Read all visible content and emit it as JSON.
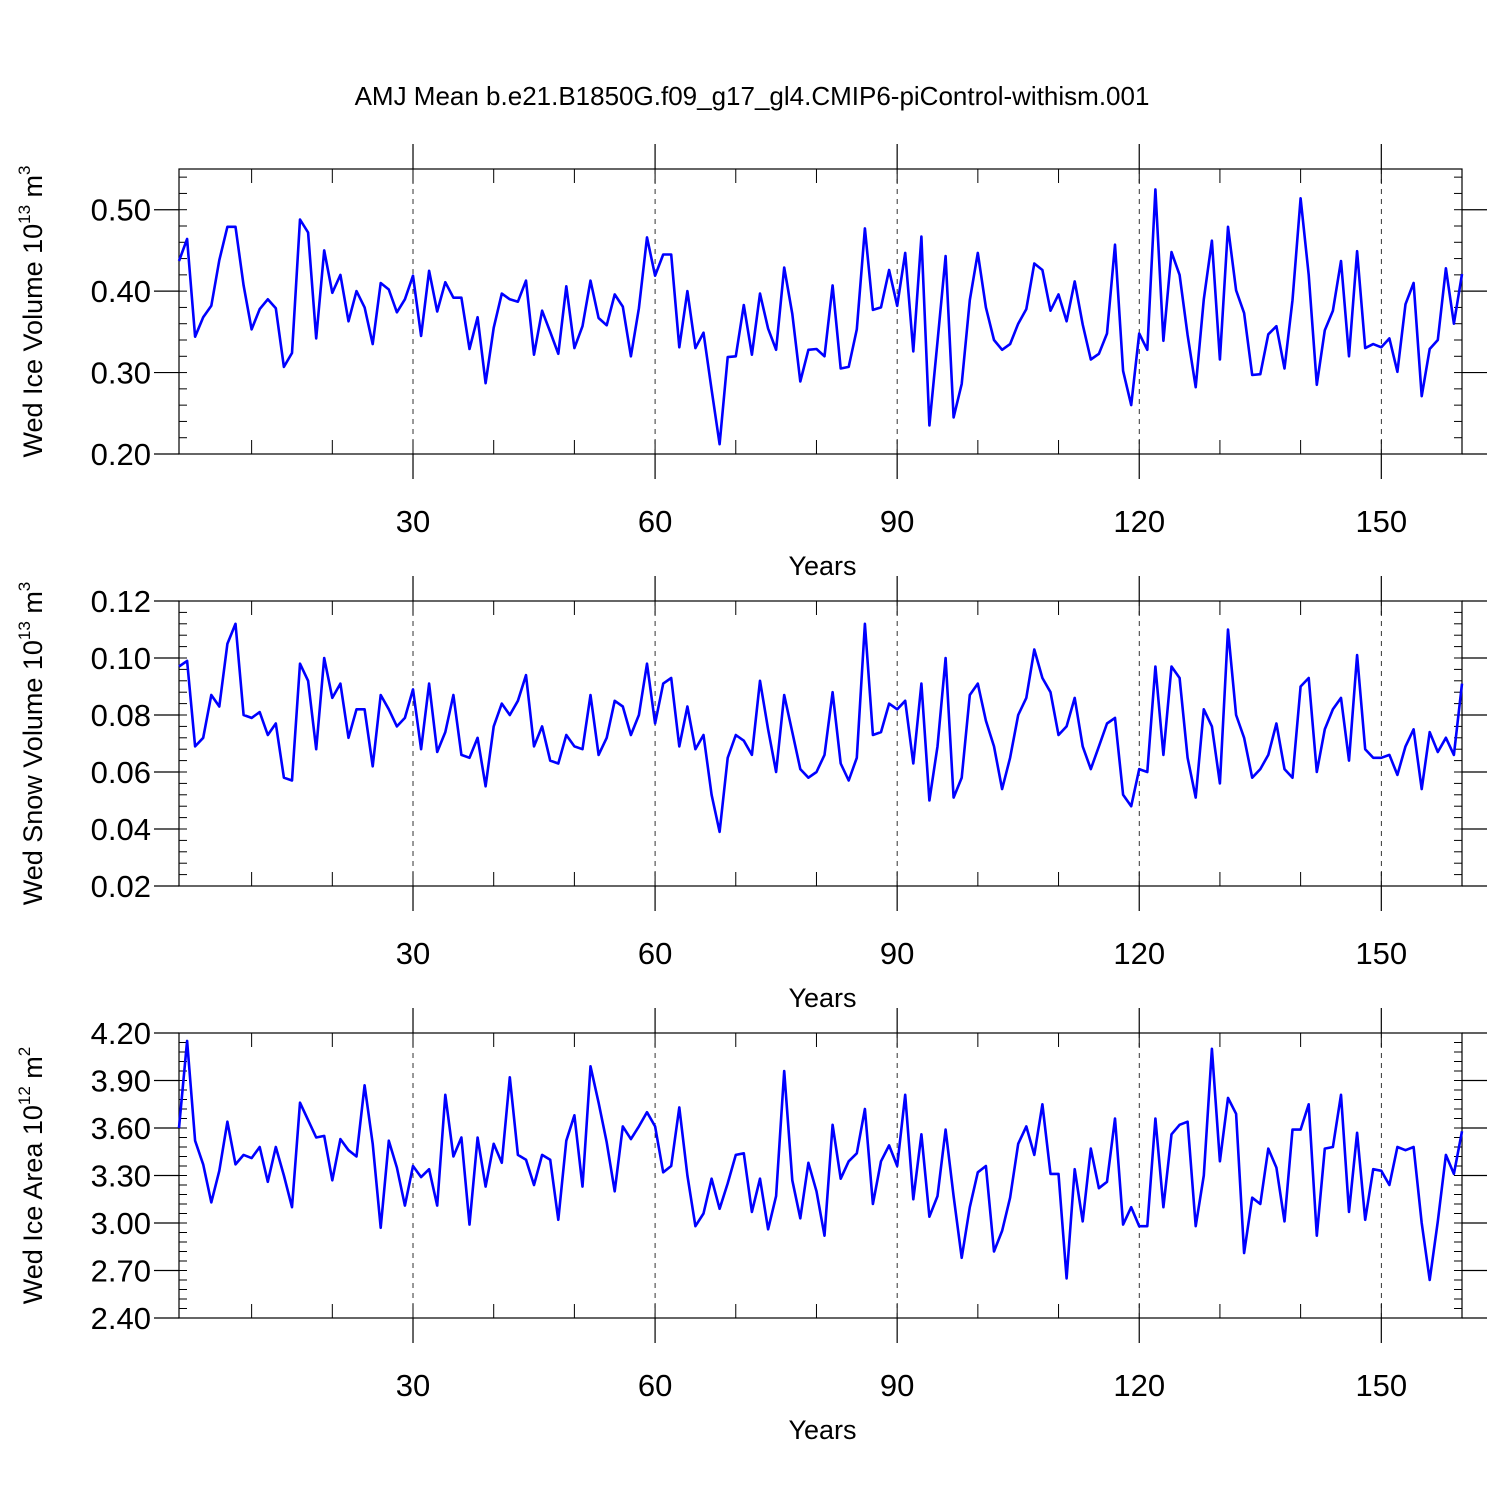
{
  "title": "AMJ Mean b.e21.B1850G.f09_g17_gl4.CMIP6-piControl-withism.001",
  "colors": {
    "line": "#0000ff",
    "axis": "#000000",
    "grid": "#000000"
  },
  "chart_data": [
    {
      "type": "line",
      "title": "",
      "xlabel": "Years",
      "ylabel_parts": [
        "Wed Ice Volume 10",
        "13",
        " m",
        "3"
      ],
      "xlim": [
        1,
        160
      ],
      "ylim": [
        0.2,
        0.55
      ],
      "xticks": [
        30,
        60,
        90,
        120,
        150
      ],
      "yticks": [
        0.2,
        0.3,
        0.4,
        0.5
      ],
      "ytick_labels": [
        "0.20",
        "0.30",
        "0.40",
        "0.50"
      ],
      "grid": "dashed vertical at major x ticks",
      "series": [
        {
          "values": [
            0.437,
            0.464,
            0.344,
            0.368,
            0.382,
            0.438,
            0.479,
            0.479,
            0.407,
            0.353,
            0.378,
            0.39,
            0.379,
            0.307,
            0.324,
            0.488,
            0.472,
            0.342,
            0.45,
            0.398,
            0.42,
            0.363,
            0.4,
            0.38,
            0.335,
            0.41,
            0.402,
            0.374,
            0.39,
            0.419,
            0.345,
            0.425,
            0.375,
            0.411,
            0.392,
            0.392,
            0.329,
            0.368,
            0.287,
            0.355,
            0.397,
            0.39,
            0.387,
            0.413,
            0.322,
            0.376,
            0.35,
            0.323,
            0.406,
            0.33,
            0.357,
            0.413,
            0.367,
            0.358,
            0.396,
            0.381,
            0.32,
            0.379,
            0.466,
            0.419,
            0.445,
            0.445,
            0.331,
            0.4,
            0.33,
            0.349,
            0.279,
            0.212,
            0.319,
            0.32,
            0.383,
            0.322,
            0.397,
            0.354,
            0.328,
            0.429,
            0.372,
            0.289,
            0.328,
            0.329,
            0.32,
            0.407,
            0.305,
            0.307,
            0.353,
            0.477,
            0.377,
            0.38,
            0.426,
            0.382,
            0.447,
            0.326,
            0.467,
            0.235,
            0.338,
            0.443,
            0.245,
            0.286,
            0.389,
            0.447,
            0.38,
            0.34,
            0.328,
            0.335,
            0.36,
            0.378,
            0.434,
            0.426,
            0.376,
            0.396,
            0.363,
            0.412,
            0.359,
            0.316,
            0.323,
            0.348,
            0.457,
            0.302,
            0.26,
            0.348,
            0.328,
            0.525,
            0.339,
            0.448,
            0.42,
            0.346,
            0.282,
            0.39,
            0.462,
            0.316,
            0.479,
            0.401,
            0.373,
            0.297,
            0.298,
            0.347,
            0.357,
            0.305,
            0.389,
            0.514,
            0.42,
            0.285,
            0.352,
            0.376,
            0.437,
            0.32,
            0.449,
            0.33,
            0.335,
            0.331,
            0.342,
            0.301,
            0.384,
            0.41,
            0.271,
            0.329,
            0.34,
            0.428,
            0.36,
            0.421
          ]
        }
      ]
    },
    {
      "type": "line",
      "title": "",
      "xlabel": "Years",
      "ylabel_parts": [
        "Wed Snow Volume 10",
        "13",
        " m",
        "3"
      ],
      "xlim": [
        1,
        160
      ],
      "ylim": [
        0.02,
        0.12
      ],
      "xticks": [
        30,
        60,
        90,
        120,
        150
      ],
      "yticks": [
        0.02,
        0.04,
        0.06,
        0.08,
        0.1,
        0.12
      ],
      "ytick_labels": [
        "0.02",
        "0.04",
        "0.06",
        "0.08",
        "0.10",
        "0.12"
      ],
      "grid": "dashed vertical at major x ticks",
      "series": [
        {
          "values": [
            0.097,
            0.099,
            0.069,
            0.072,
            0.087,
            0.083,
            0.105,
            0.112,
            0.08,
            0.079,
            0.081,
            0.073,
            0.077,
            0.058,
            0.057,
            0.098,
            0.092,
            0.068,
            0.1,
            0.086,
            0.091,
            0.072,
            0.082,
            0.082,
            0.062,
            0.087,
            0.082,
            0.076,
            0.079,
            0.089,
            0.068,
            0.091,
            0.067,
            0.074,
            0.087,
            0.066,
            0.065,
            0.072,
            0.055,
            0.076,
            0.084,
            0.08,
            0.085,
            0.094,
            0.069,
            0.076,
            0.064,
            0.063,
            0.073,
            0.069,
            0.068,
            0.087,
            0.066,
            0.072,
            0.085,
            0.083,
            0.073,
            0.08,
            0.098,
            0.077,
            0.091,
            0.093,
            0.069,
            0.083,
            0.068,
            0.073,
            0.052,
            0.039,
            0.065,
            0.073,
            0.071,
            0.066,
            0.092,
            0.075,
            0.06,
            0.087,
            0.074,
            0.061,
            0.058,
            0.06,
            0.066,
            0.088,
            0.063,
            0.057,
            0.065,
            0.112,
            0.073,
            0.074,
            0.084,
            0.082,
            0.085,
            0.063,
            0.091,
            0.05,
            0.069,
            0.1,
            0.051,
            0.058,
            0.087,
            0.091,
            0.078,
            0.069,
            0.054,
            0.065,
            0.08,
            0.086,
            0.103,
            0.093,
            0.088,
            0.073,
            0.076,
            0.086,
            0.069,
            0.061,
            0.069,
            0.077,
            0.079,
            0.052,
            0.048,
            0.061,
            0.06,
            0.097,
            0.066,
            0.097,
            0.093,
            0.065,
            0.051,
            0.082,
            0.076,
            0.056,
            0.11,
            0.08,
            0.072,
            0.058,
            0.061,
            0.066,
            0.077,
            0.061,
            0.058,
            0.09,
            0.093,
            0.06,
            0.075,
            0.082,
            0.086,
            0.064,
            0.101,
            0.068,
            0.065,
            0.065,
            0.066,
            0.059,
            0.069,
            0.075,
            0.054,
            0.074,
            0.067,
            0.072,
            0.066,
            0.091
          ]
        }
      ]
    },
    {
      "type": "line",
      "title": "",
      "xlabel": "Years",
      "ylabel_parts": [
        "Wed Ice Area 10",
        "12",
        " m",
        "2"
      ],
      "xlim": [
        1,
        160
      ],
      "ylim": [
        2.4,
        4.2
      ],
      "xticks": [
        30,
        60,
        90,
        120,
        150
      ],
      "yticks": [
        2.4,
        2.7,
        3.0,
        3.3,
        3.6,
        3.9,
        4.2
      ],
      "ytick_labels": [
        "2.40",
        "2.70",
        "3.00",
        "3.30",
        "3.60",
        "3.90",
        "4.20"
      ],
      "grid": "dashed vertical at major x ticks",
      "series": [
        {
          "values": [
            3.6,
            4.15,
            3.52,
            3.37,
            3.13,
            3.33,
            3.64,
            3.37,
            3.43,
            3.41,
            3.48,
            3.26,
            3.48,
            3.3,
            3.1,
            3.76,
            3.65,
            3.54,
            3.55,
            3.27,
            3.53,
            3.46,
            3.42,
            3.87,
            3.5,
            2.97,
            3.52,
            3.35,
            3.11,
            3.36,
            3.29,
            3.34,
            3.11,
            3.81,
            3.42,
            3.54,
            2.99,
            3.54,
            3.23,
            3.5,
            3.38,
            3.92,
            3.43,
            3.4,
            3.24,
            3.43,
            3.4,
            3.02,
            3.52,
            3.68,
            3.23,
            3.99,
            3.76,
            3.51,
            3.2,
            3.61,
            3.53,
            3.61,
            3.7,
            3.61,
            3.32,
            3.36,
            3.73,
            3.3,
            2.98,
            3.06,
            3.28,
            3.09,
            3.25,
            3.43,
            3.44,
            3.07,
            3.28,
            2.96,
            3.17,
            3.96,
            3.27,
            3.03,
            3.38,
            3.2,
            2.92,
            3.62,
            3.28,
            3.39,
            3.44,
            3.72,
            3.12,
            3.39,
            3.49,
            3.36,
            3.81,
            3.15,
            3.56,
            3.04,
            3.17,
            3.59,
            3.17,
            2.78,
            3.1,
            3.32,
            3.36,
            2.82,
            2.95,
            3.16,
            3.5,
            3.61,
            3.43,
            3.75,
            3.31,
            3.31,
            2.65,
            3.34,
            3.01,
            3.47,
            3.22,
            3.26,
            3.66,
            2.99,
            3.1,
            2.98,
            2.98,
            3.66,
            3.1,
            3.56,
            3.62,
            3.64,
            2.98,
            3.3,
            4.1,
            3.39,
            3.79,
            3.69,
            2.81,
            3.16,
            3.12,
            3.47,
            3.35,
            3.01,
            3.59,
            3.59,
            3.75,
            2.92,
            3.47,
            3.48,
            3.81,
            3.07,
            3.57,
            3.02,
            3.34,
            3.33,
            3.24,
            3.48,
            3.46,
            3.48,
            3.0,
            2.64,
            3.01,
            3.43,
            3.31,
            3.58
          ]
        }
      ]
    }
  ]
}
